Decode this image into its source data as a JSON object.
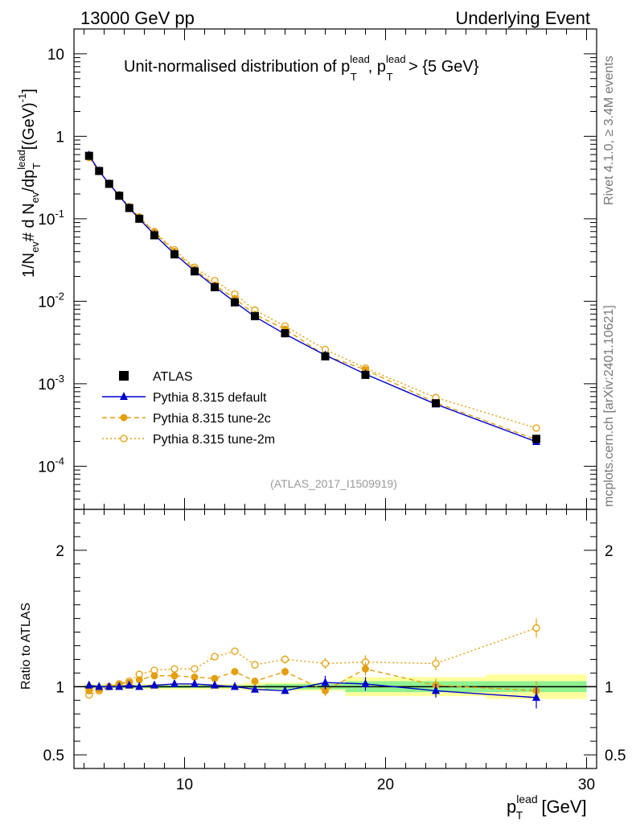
{
  "header": {
    "left": "13000 GeV pp",
    "right": "Underlying Event"
  },
  "side_texts": {
    "rivet": "Rivet 4.1.0, ≥ 3.4M events",
    "mcplots": "mcplots.cern.ch [arXiv:2401.10621]"
  },
  "chart_data": {
    "type": "line",
    "title": "Unit-normalised distribution of p_T^lead, p_T^lead > {5 GeV}",
    "title_parts": {
      "pre": "Unit-normalised distribution of p",
      "sup1": "lead",
      "sub1": "T",
      "mid": ", p",
      "sup2": "lead",
      "sub2": "T",
      "post": " > {5 GeV}"
    },
    "analysis_label": "(ATLAS_2017_I1509919)",
    "xlabel": "p_T^lead [GeV]",
    "xlabel_parts": {
      "main": "p",
      "sup": "lead",
      "sub": "T",
      "unit": " [GeV]"
    },
    "ylabel": "1/N_ev # d N_ev/dp_T^lead [(GeV)^-1]",
    "ylabel_parts": {
      "a": "1/N",
      "b": "ev",
      "c": "# d N",
      "d": "ev",
      "e": "/dp",
      "f": "lead",
      "g": "T",
      "h": "[(GeV)",
      "i": "-1",
      "j": "]"
    },
    "ratio_ylabel": "Ratio to ATLAS",
    "xlim": [
      4.5,
      30.5
    ],
    "ylim": [
      3e-05,
      20
    ],
    "ylog": true,
    "ratio_ylim": [
      0.4,
      2.3
    ],
    "x_ticks": [
      10,
      20,
      30
    ],
    "x_tick_labels": [
      "10",
      "20",
      "30"
    ],
    "y_ticks": [
      {
        "value": 10,
        "base": "10",
        "exp": ""
      },
      {
        "value": 1,
        "base": "1",
        "exp": ""
      },
      {
        "value": 0.1,
        "base": "10",
        "exp": "-1"
      },
      {
        "value": 0.01,
        "base": "10",
        "exp": "-2"
      },
      {
        "value": 0.001,
        "base": "10",
        "exp": "-3"
      },
      {
        "value": 0.0001,
        "base": "10",
        "exp": "-4"
      }
    ],
    "ratio_ticks": [
      {
        "value": 2,
        "label": "2"
      },
      {
        "value": 1,
        "label": "1"
      },
      {
        "value": 0.5,
        "label": "0.5"
      }
    ],
    "x": [
      5.25,
      5.75,
      6.25,
      6.75,
      7.25,
      7.75,
      8.5,
      9.5,
      10.5,
      11.5,
      12.5,
      13.5,
      15,
      17,
      19,
      22.5,
      27.5
    ],
    "bin_edges": [
      5,
      5.5,
      6,
      6.5,
      7,
      7.5,
      8,
      9,
      10,
      11,
      12,
      13,
      14,
      16,
      18,
      20,
      25,
      30
    ],
    "data_band_inner": [
      0.99,
      0.99,
      0.99,
      0.99,
      0.99,
      0.99,
      0.99,
      0.99,
      0.99,
      0.99,
      0.99,
      0.99,
      0.98,
      0.98,
      0.96,
      0.96,
      0.96
    ],
    "data_band_outer": [
      0.98,
      0.98,
      0.98,
      0.98,
      0.98,
      0.98,
      0.98,
      0.98,
      0.98,
      0.98,
      0.98,
      0.97,
      0.97,
      0.97,
      0.93,
      0.93,
      0.91
    ],
    "series": [
      {
        "name": "ATLAS",
        "style": "data",
        "color": "#000000",
        "values": [
          0.58,
          0.38,
          0.265,
          0.19,
          0.135,
          0.1,
          0.063,
          0.037,
          0.023,
          0.0148,
          0.0097,
          0.0066,
          0.0041,
          0.00215,
          0.00128,
          0.00058,
          0.000215
        ]
      },
      {
        "name": "Pythia 8.315 default",
        "style": "solid",
        "marker": "triangle",
        "color": "#0000cc",
        "values": [
          0.59,
          0.38,
          0.265,
          0.19,
          0.135,
          0.1,
          0.064,
          0.0375,
          0.0233,
          0.015,
          0.0098,
          0.0065,
          0.004,
          0.00222,
          0.00131,
          0.000565,
          0.000198
        ],
        "ratio": [
          1.01,
          1.0,
          1.0,
          1.0,
          1.01,
          1.0,
          1.01,
          1.02,
          1.02,
          1.01,
          1.0,
          0.98,
          0.97,
          1.03,
          1.02,
          0.97,
          0.92
        ],
        "ratio_err": [
          0.01,
          0.01,
          0.01,
          0.01,
          0.01,
          0.01,
          0.01,
          0.01,
          0.01,
          0.01,
          0.02,
          0.02,
          0.02,
          0.05,
          0.05,
          0.05,
          0.08
        ]
      },
      {
        "name": "Pythia 8.315 tune-2c",
        "style": "dashed",
        "marker": "circle",
        "color": "#e39e0b",
        "values": [
          0.56,
          0.375,
          0.265,
          0.193,
          0.138,
          0.104,
          0.068,
          0.04,
          0.0245,
          0.0157,
          0.0108,
          0.0069,
          0.0046,
          0.0022,
          0.00148,
          0.00059,
          0.00021
        ],
        "ratio": [
          0.97,
          0.98,
          1.0,
          1.02,
          1.03,
          1.05,
          1.08,
          1.08,
          1.07,
          1.06,
          1.11,
          1.04,
          1.11,
          0.97,
          1.13,
          1.01,
          0.97
        ],
        "ratio_err": [
          0.01,
          0.01,
          0.01,
          0.01,
          0.01,
          0.01,
          0.01,
          0.01,
          0.01,
          0.01,
          0.02,
          0.02,
          0.03,
          0.04,
          0.05,
          0.05,
          0.07
        ]
      },
      {
        "name": "Pythia 8.315 tune-2m",
        "style": "dotted",
        "marker": "open-circle",
        "color": "#e39e0b",
        "values": [
          0.555,
          0.375,
          0.265,
          0.195,
          0.14,
          0.105,
          0.07,
          0.042,
          0.0258,
          0.0178,
          0.0122,
          0.0078,
          0.005,
          0.0026,
          0.00155,
          0.00068,
          0.00029
        ],
        "ratio": [
          0.94,
          0.97,
          1.0,
          1.02,
          1.04,
          1.09,
          1.12,
          1.13,
          1.13,
          1.22,
          1.26,
          1.16,
          1.2,
          1.17,
          1.18,
          1.17,
          1.43
        ],
        "ratio_err": [
          0.01,
          0.01,
          0.01,
          0.01,
          0.01,
          0.01,
          0.01,
          0.01,
          0.01,
          0.01,
          0.02,
          0.02,
          0.03,
          0.04,
          0.05,
          0.05,
          0.07
        ]
      }
    ]
  }
}
